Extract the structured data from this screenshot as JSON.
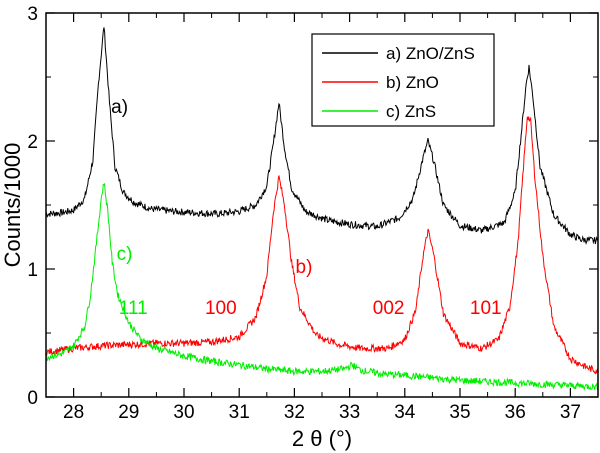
{
  "chart_data": {
    "type": "line",
    "xlabel": "2 θ (°)",
    "ylabel": "Counts/1000",
    "xlim": [
      27.5,
      37.5
    ],
    "ylim": [
      0,
      3
    ],
    "xticks": [
      28,
      29,
      30,
      31,
      32,
      33,
      34,
      35,
      36,
      37
    ],
    "yticks": [
      0,
      1,
      2,
      3
    ],
    "grid": false,
    "legend_position": "top-right",
    "series": [
      {
        "name": "a) ZnO/ZnS",
        "color": "#000000",
        "x": [
          27.5,
          27.8,
          28.0,
          28.2,
          28.35,
          28.45,
          28.55,
          28.65,
          28.75,
          28.9,
          29.1,
          29.4,
          29.8,
          30.2,
          30.6,
          31.0,
          31.3,
          31.5,
          31.62,
          31.72,
          31.82,
          31.95,
          32.2,
          32.6,
          33.0,
          33.5,
          33.9,
          34.15,
          34.32,
          34.42,
          34.52,
          34.7,
          35.0,
          35.4,
          35.8,
          36.0,
          36.12,
          36.2,
          36.25,
          36.32,
          36.45,
          36.7,
          37.0,
          37.2,
          37.5
        ],
        "y": [
          1.43,
          1.44,
          1.46,
          1.55,
          1.85,
          2.45,
          2.9,
          2.3,
          1.8,
          1.6,
          1.52,
          1.47,
          1.45,
          1.44,
          1.43,
          1.45,
          1.5,
          1.65,
          1.98,
          2.3,
          1.95,
          1.63,
          1.45,
          1.38,
          1.35,
          1.33,
          1.4,
          1.55,
          1.85,
          2.0,
          1.85,
          1.5,
          1.34,
          1.3,
          1.36,
          1.6,
          2.1,
          2.45,
          2.58,
          2.35,
          1.8,
          1.42,
          1.27,
          1.23,
          1.22
        ]
      },
      {
        "name": "b) ZnO",
        "color": "#ff0000",
        "x": [
          27.5,
          28.0,
          28.5,
          29.0,
          29.5,
          30.0,
          30.5,
          31.0,
          31.3,
          31.5,
          31.62,
          31.72,
          31.82,
          31.95,
          32.1,
          32.4,
          32.8,
          33.2,
          33.7,
          34.0,
          34.2,
          34.33,
          34.42,
          34.52,
          34.7,
          35.0,
          35.4,
          35.7,
          35.9,
          36.05,
          36.15,
          36.22,
          36.28,
          36.35,
          36.5,
          36.7,
          37.0,
          37.3,
          37.5
        ],
        "y": [
          0.35,
          0.38,
          0.4,
          0.41,
          0.42,
          0.42,
          0.43,
          0.47,
          0.62,
          0.95,
          1.45,
          1.72,
          1.5,
          1.05,
          0.7,
          0.48,
          0.41,
          0.38,
          0.38,
          0.45,
          0.68,
          1.1,
          1.3,
          1.12,
          0.65,
          0.42,
          0.38,
          0.45,
          0.7,
          1.2,
          1.8,
          2.2,
          2.15,
          1.75,
          1.1,
          0.55,
          0.3,
          0.23,
          0.2
        ]
      },
      {
        "name": "c) ZnS",
        "color": "#00ee00",
        "x": [
          27.5,
          27.8,
          28.0,
          28.2,
          28.3,
          28.4,
          28.5,
          28.55,
          28.62,
          28.7,
          28.8,
          29.0,
          29.2,
          29.5,
          30.0,
          30.5,
          31.0,
          31.5,
          32.0,
          32.5,
          32.9,
          33.05,
          33.2,
          33.6,
          34.0,
          34.5,
          35.0,
          35.5,
          36.0,
          36.5,
          37.0,
          37.5
        ],
        "y": [
          0.31,
          0.34,
          0.4,
          0.55,
          0.78,
          1.15,
          1.55,
          1.68,
          1.45,
          1.05,
          0.8,
          0.58,
          0.46,
          0.38,
          0.32,
          0.28,
          0.25,
          0.22,
          0.2,
          0.2,
          0.22,
          0.25,
          0.21,
          0.18,
          0.17,
          0.15,
          0.13,
          0.12,
          0.11,
          0.1,
          0.09,
          0.08
        ]
      }
    ],
    "annotations": [
      {
        "text": "a)",
        "x": 28.68,
        "y": 2.22,
        "color": "#000000"
      },
      {
        "text": "c)",
        "x": 28.78,
        "y": 1.07,
        "color": "#00ee00"
      },
      {
        "text": "b)",
        "x": 32.02,
        "y": 0.97,
        "color": "#ff0000"
      },
      {
        "text": "111",
        "x": 28.82,
        "y": 0.65,
        "color": "#00ee00"
      },
      {
        "text": "100",
        "x": 30.38,
        "y": 0.65,
        "color": "#ff0000"
      },
      {
        "text": "002",
        "x": 33.42,
        "y": 0.65,
        "color": "#ff0000"
      },
      {
        "text": "101",
        "x": 35.18,
        "y": 0.65,
        "color": "#ff0000"
      }
    ]
  }
}
